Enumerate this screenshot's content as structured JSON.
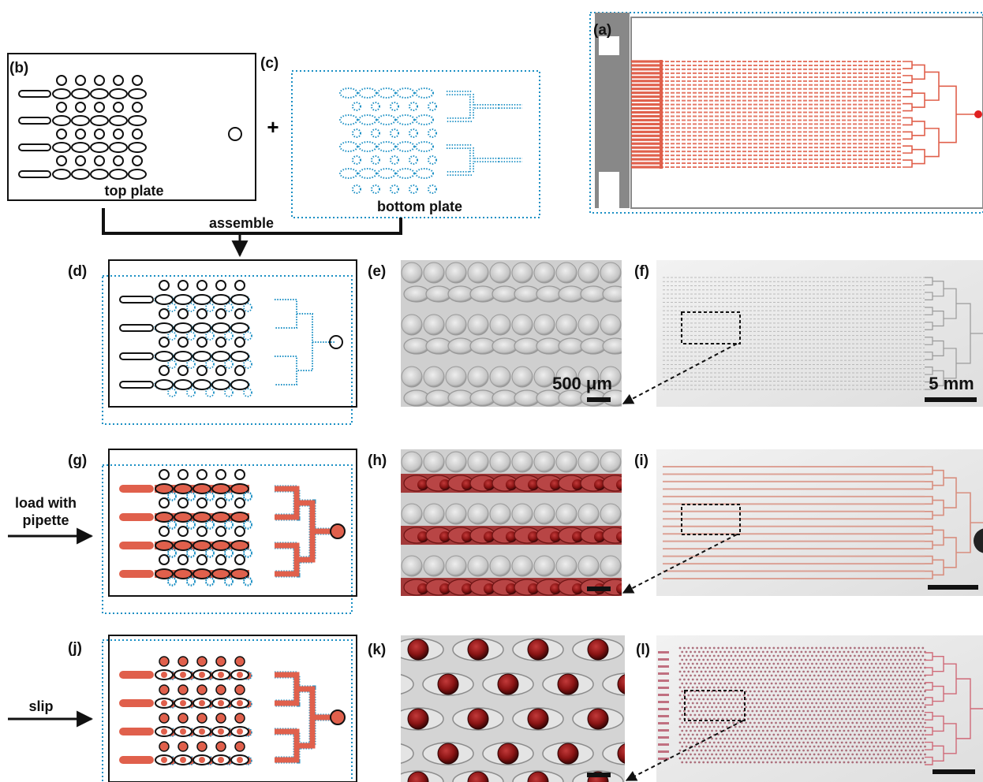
{
  "panels": {
    "a": "(a)",
    "b": "(b)",
    "c": "(c)",
    "d": "(d)",
    "e": "(e)",
    "f": "(f)",
    "g": "(g)",
    "h": "(h)",
    "i": "(i)",
    "j": "(j)",
    "k": "(k)",
    "l": "(l)"
  },
  "labels": {
    "top_plate": "top plate",
    "bottom_plate": "bottom plate",
    "assemble": "assemble",
    "plus": "+",
    "load_line1": "load with",
    "load_line2": "pipette",
    "slip": "slip",
    "scale_e": "500 μm",
    "scale_f": "5 mm"
  },
  "colors": {
    "top_plate": "#111111",
    "bottom_plate": "#1a8fc4",
    "fluid": "#e0604c",
    "fluid_dark": "#8a1414",
    "device_gray": "#888888",
    "micrograph_bg": "#c9c9c9"
  }
}
